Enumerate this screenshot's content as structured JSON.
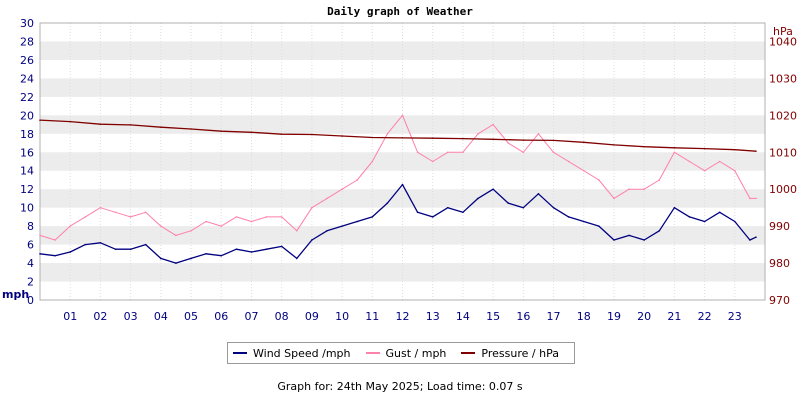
{
  "chart_data": {
    "type": "line",
    "title": "Daily graph of Weather",
    "left_axis_unit": "mph",
    "right_axis_unit": "hPa",
    "ylim": [
      0,
      30
    ],
    "y2lim": [
      970,
      1045
    ],
    "y_ticks": [
      0,
      2,
      4,
      6,
      8,
      10,
      12,
      14,
      16,
      18,
      20,
      22,
      24,
      26,
      28,
      30
    ],
    "y2_ticks": [
      970,
      980,
      990,
      1000,
      1010,
      1020,
      1030,
      1040
    ],
    "xlim": [
      0,
      24
    ],
    "x_tick_labels": [
      "01",
      "02",
      "03",
      "04",
      "05",
      "06",
      "07",
      "08",
      "09",
      "10",
      "11",
      "12",
      "13",
      "14",
      "15",
      "16",
      "17",
      "18",
      "19",
      "20",
      "21",
      "22",
      "23"
    ],
    "grid": "horizontal alternating bands",
    "legend_position": "bottom-center",
    "series": [
      {
        "name": "Wind Speed /mph",
        "axis": "left",
        "color": "#000080",
        "x": [
          0,
          0.5,
          1,
          1.5,
          2,
          2.5,
          3,
          3.5,
          4,
          4.5,
          5,
          5.5,
          6,
          6.5,
          7,
          7.5,
          8,
          8.5,
          9,
          9.5,
          10,
          10.5,
          11,
          11.5,
          12,
          12.5,
          13,
          13.5,
          14,
          14.5,
          15,
          15.5,
          16,
          16.5,
          17,
          17.5,
          18,
          18.5,
          19,
          19.5,
          20,
          20.5,
          21,
          21.5,
          22,
          22.5,
          23,
          23.5,
          23.7
        ],
        "values": [
          5,
          4.8,
          5.2,
          6,
          6.2,
          5.5,
          5.5,
          6,
          4.5,
          4,
          4.5,
          5,
          4.8,
          5.5,
          5.2,
          5.5,
          5.8,
          4.5,
          6.5,
          7.5,
          8,
          8.5,
          9,
          10.5,
          12.5,
          9.5,
          9,
          10,
          9.5,
          11,
          12,
          10.5,
          10,
          11.5,
          10,
          9,
          8.5,
          8,
          6.5,
          7,
          6.5,
          7.5,
          10,
          9,
          8.5,
          9.5,
          8.5,
          6.5,
          6.8
        ]
      },
      {
        "name": "Gust / mph",
        "axis": "left",
        "color": "#ff80a8",
        "x": [
          0,
          0.5,
          1,
          1.5,
          2,
          2.5,
          3,
          3.5,
          4,
          4.5,
          5,
          5.5,
          6,
          6.5,
          7,
          7.5,
          8,
          8.5,
          9,
          9.5,
          10,
          10.5,
          11,
          11.5,
          12,
          12.5,
          13,
          13.5,
          14,
          14.5,
          15,
          15.5,
          16,
          16.5,
          17,
          17.5,
          18,
          18.5,
          19,
          19.5,
          20,
          20.5,
          21,
          21.5,
          22,
          22.5,
          23,
          23.5,
          23.7
        ],
        "values": [
          7,
          6.5,
          8,
          9,
          10,
          9.5,
          9,
          9.5,
          8,
          7,
          7.5,
          8.5,
          8,
          9,
          8.5,
          9,
          9,
          7.5,
          10,
          11,
          12,
          13,
          15,
          18,
          20,
          16,
          15,
          16,
          16,
          18,
          19,
          17,
          16,
          18,
          16,
          15,
          14,
          13,
          11,
          12,
          12,
          13,
          16,
          15,
          14,
          15,
          14,
          11,
          11
        ]
      },
      {
        "name": "Pressure / hPa",
        "axis": "right",
        "color": "#800000",
        "x": [
          0,
          1,
          2,
          3,
          4,
          5,
          6,
          7,
          8,
          9,
          10,
          11,
          12,
          13,
          14,
          15,
          16,
          17,
          18,
          19,
          20,
          21,
          22,
          23,
          23.7
        ],
        "values": [
          1018.7,
          1018.3,
          1017.6,
          1017.4,
          1016.8,
          1016.3,
          1015.7,
          1015.4,
          1014.9,
          1014.8,
          1014.4,
          1014.0,
          1013.9,
          1013.8,
          1013.7,
          1013.5,
          1013.3,
          1013.2,
          1012.7,
          1012.0,
          1011.5,
          1011.2,
          1011.0,
          1010.7,
          1010.3
        ]
      }
    ]
  },
  "footer_text": "Graph for: 24th May 2025; Load time: 0.07 s"
}
